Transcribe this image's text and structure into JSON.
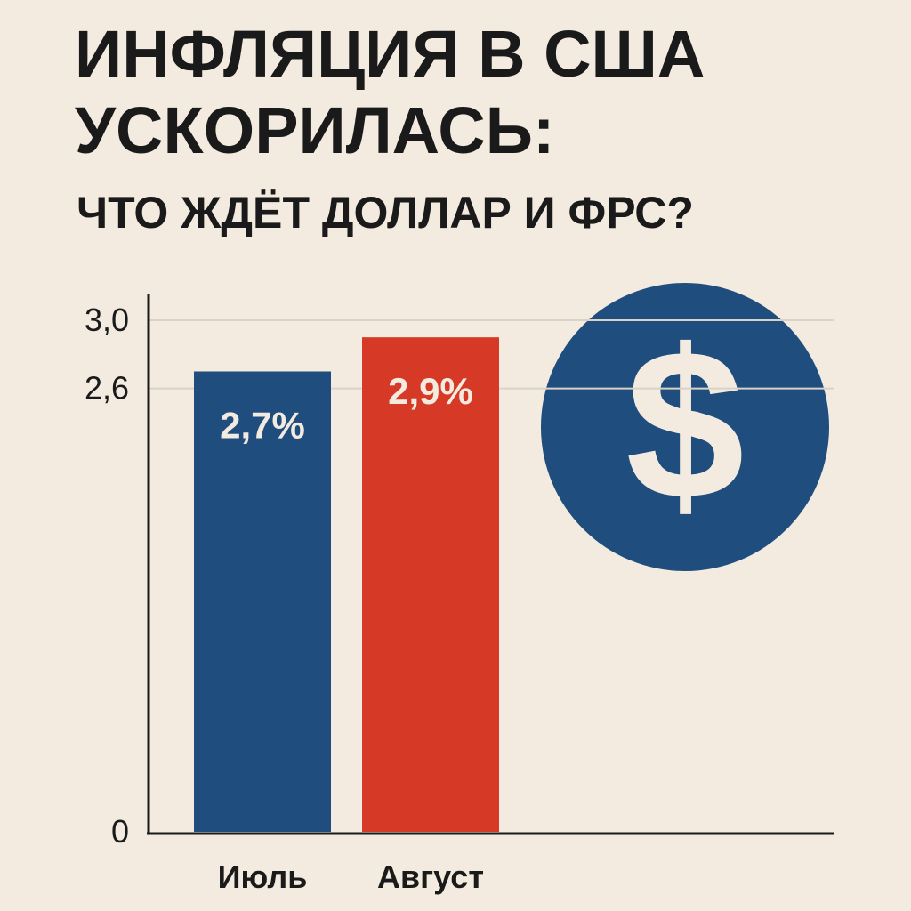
{
  "chart_data": {
    "type": "bar",
    "title": [
      "ИНФЛЯЦИЯ В США",
      "УСКОРИЛАСЬ:"
    ],
    "subtitle": "ЧТО ЖДЁТ ДОЛЛАР И ФРС?",
    "categories": [
      "Июль",
      "Август"
    ],
    "values": [
      2.7,
      2.9
    ],
    "value_labels": [
      "2,7%",
      "2,9%"
    ],
    "colors": [
      "#1f4d7e",
      "#d63a27"
    ],
    "ylim": [
      0,
      3.0
    ],
    "yticks": [
      0,
      {
        "value": 2.6,
        "label": "2,6"
      },
      {
        "value": 3.0,
        "label": "3,0"
      }
    ],
    "grid": true,
    "badge": "$"
  }
}
